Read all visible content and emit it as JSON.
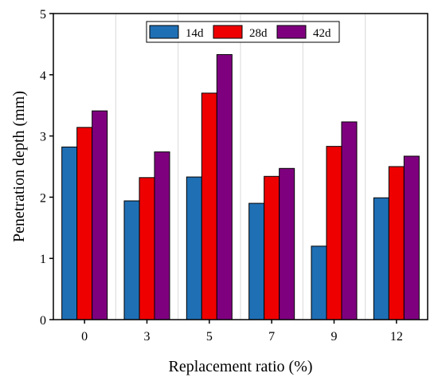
{
  "chart_data": {
    "type": "bar",
    "xlabel": "Replacement ratio (%)",
    "ylabel": "Penetration depth (mm)",
    "categories": [
      "0",
      "3",
      "5",
      "7",
      "9",
      "12"
    ],
    "series": [
      {
        "name": "14d",
        "color": "#1f6fb4",
        "values": [
          2.82,
          1.94,
          2.33,
          1.9,
          1.2,
          1.99
        ]
      },
      {
        "name": "28d",
        "color": "#ee0000",
        "values": [
          3.14,
          2.32,
          3.7,
          2.34,
          2.83,
          2.5
        ]
      },
      {
        "name": "42d",
        "color": "#7f007f",
        "values": [
          3.41,
          2.74,
          4.33,
          2.47,
          3.23,
          2.67
        ]
      }
    ],
    "ylim": [
      0,
      5
    ],
    "yticks": [
      "0",
      "1",
      "2",
      "3",
      "4",
      "5"
    ],
    "grid": "vertical",
    "legend": "top-center"
  }
}
